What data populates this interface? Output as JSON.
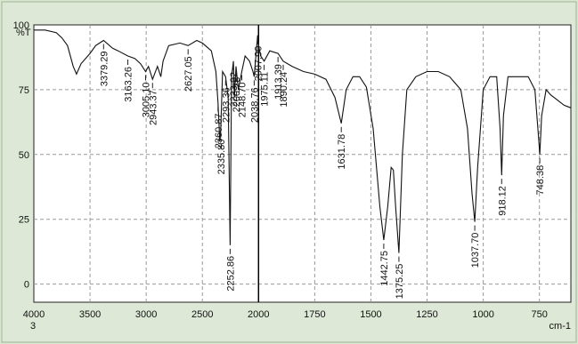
{
  "chart_data": {
    "type": "line",
    "y_label": "%T",
    "x_corner_label": "3",
    "x_unit": "cm-1",
    "xlim": [
      4000,
      610
    ],
    "ylim": [
      -7,
      100
    ],
    "xticks": [
      4000,
      3500,
      3000,
      2500,
      2000,
      1750,
      1500,
      1250,
      1000,
      750
    ],
    "yticks": [
      0,
      25,
      50,
      75,
      100
    ],
    "grid": true,
    "color": "#111111",
    "x": [
      4000,
      3900,
      3800,
      3750,
      3700,
      3650,
      3620,
      3580,
      3500,
      3450,
      3379.29,
      3300,
      3250,
      3163.26,
      3100,
      3050,
      3005.1,
      2980,
      2943.37,
      2900,
      2870,
      2850,
      2800,
      2700,
      2627.05,
      2550,
      2500,
      2420,
      2380,
      2360.87,
      2345,
      2335.8,
      2320,
      2293.36,
      2270,
      2252.86,
      2240,
      2223.92,
      2215,
      2200.78,
      2180,
      2148.7,
      2120,
      2080,
      2050,
      2038.76,
      2020,
      2007.9,
      2000,
      1990,
      1975.11,
      1950,
      1913.39,
      1890.24,
      1850,
      1800,
      1750,
      1700,
      1660,
      1631.78,
      1610,
      1580,
      1550,
      1520,
      1490,
      1460,
      1442.75,
      1425,
      1410,
      1400,
      1390,
      1375.25,
      1360,
      1340,
      1300,
      1250,
      1200,
      1150,
      1100,
      1070,
      1050,
      1037.7,
      1025,
      1000,
      970,
      940,
      925,
      918.12,
      910,
      890,
      850,
      800,
      770,
      755,
      748.38,
      740,
      720,
      700,
      670,
      640,
      610
    ],
    "values": [
      98,
      98,
      97,
      95,
      92,
      84,
      81,
      85,
      89,
      92,
      94,
      91,
      90,
      88,
      87,
      85,
      82,
      84,
      79,
      84,
      80,
      86,
      92,
      93,
      92,
      94,
      93,
      90,
      82,
      70,
      55,
      60,
      82,
      80,
      72,
      15,
      80,
      86,
      72,
      84,
      75,
      82,
      88,
      86,
      82,
      80,
      90,
      96,
      92,
      88,
      86,
      90,
      89,
      86,
      84,
      82,
      81,
      79,
      72,
      62,
      75,
      80,
      80,
      76,
      60,
      30,
      17,
      30,
      45,
      44,
      30,
      12,
      50,
      75,
      80,
      82,
      82,
      80,
      75,
      60,
      35,
      24,
      45,
      75,
      80,
      80,
      60,
      42,
      65,
      80,
      80,
      80,
      75,
      58,
      50,
      65,
      75,
      73,
      71,
      69,
      68
    ],
    "peak_labels": [
      3379.29,
      3163.26,
      {
        "value": 3005.1,
        "label": "3005.10"
      },
      2943.37,
      2627.05,
      2360.87,
      {
        "value": 2335.8,
        "label": "2335.80"
      },
      2293.36,
      2252.86,
      2223.92,
      2200.78,
      {
        "value": 2148.7,
        "label": "2148.70"
      },
      2038.76,
      {
        "value": 2007.9,
        "label": "2007.90"
      },
      1975.11,
      1913.39,
      1890.24,
      1631.78,
      1442.75,
      1375.25,
      {
        "value": 1037.7,
        "label": "1037.70"
      },
      918.12,
      748.38
    ]
  }
}
